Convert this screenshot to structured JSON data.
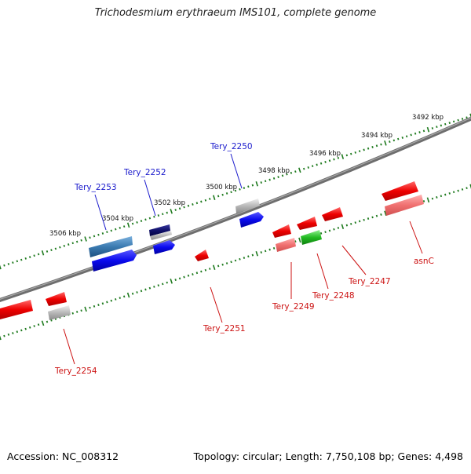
{
  "title": "Trichodesmium erythraeum IMS101, complete genome",
  "footer": {
    "accession": "Accession: NC_008312",
    "summary": "Topology: circular; Length: 7,750,108 bp; Genes: 4,498"
  },
  "position_labels": [
    "3492 kbp",
    "3494 kbp",
    "3496 kbp",
    "3498 kbp",
    "3500 kbp",
    "3502 kbp",
    "3504 kbp",
    "3506 kbp"
  ],
  "genes_forward": [
    "Tery_2250",
    "Tery_2252",
    "Tery_2253"
  ],
  "genes_reverse": [
    "asnC",
    "Tery_2247",
    "Tery_2248",
    "Tery_2249",
    "Tery_2251",
    "Tery_2254"
  ],
  "colors": {
    "forward_label": "#1a1acc",
    "reverse_label": "#cc1111",
    "backbone": "#707070",
    "tick": "#1e7a1e"
  }
}
